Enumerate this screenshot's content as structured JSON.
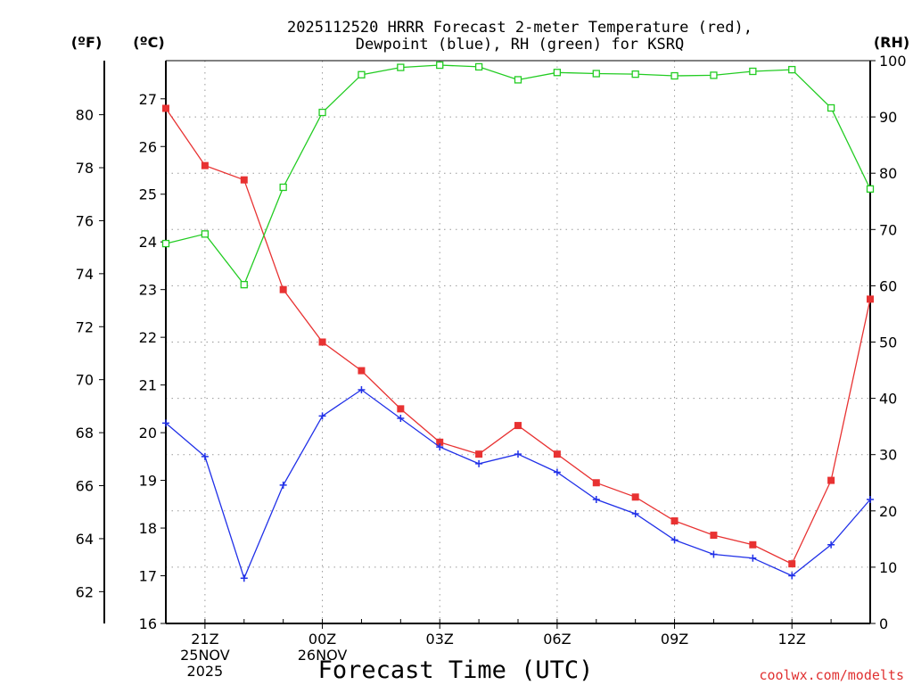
{
  "chart_data": {
    "type": "line",
    "title_line1": "2025112520 HRRR Forecast 2-meter Temperature (red),",
    "title_line2": "Dewpoint (blue), RH (green) for KSRQ",
    "xlabel": "Forecast Time (UTC)",
    "credit": "coolwx.com/modelts",
    "unit_fahrenheit": "(ºF)",
    "unit_celsius": "(ºC)",
    "unit_rh": "(RH)",
    "x_hours": [
      20,
      21,
      22,
      23,
      24,
      25,
      26,
      27,
      28,
      29,
      30,
      31,
      32,
      33,
      34,
      35,
      36,
      37,
      38
    ],
    "x_tick_hours": [
      21,
      24,
      27,
      30,
      33,
      36
    ],
    "x_tick_labels": [
      [
        "21Z",
        "25NOV",
        "2025"
      ],
      [
        "00Z",
        "26NOV"
      ],
      [
        "03Z"
      ],
      [
        "06Z"
      ],
      [
        "09Z"
      ],
      [
        "12Z"
      ]
    ],
    "celsius_range": [
      16,
      27.8
    ],
    "celsius_ticks": [
      16,
      17,
      18,
      19,
      20,
      21,
      22,
      23,
      24,
      25,
      26,
      27
    ],
    "fahrenheit_ticks": [
      62,
      64,
      66,
      68,
      70,
      72,
      74,
      76,
      78,
      80
    ],
    "rh_range": [
      0,
      100
    ],
    "rh_ticks": [
      0,
      10,
      20,
      30,
      40,
      50,
      60,
      70,
      80,
      90,
      100
    ],
    "series": [
      {
        "name": "Temperature",
        "axis": "celsius",
        "color": "#e83232",
        "marker": "filled-square",
        "values": [
          26.8,
          25.6,
          25.3,
          23.0,
          21.9,
          21.3,
          20.5,
          19.8,
          19.55,
          20.15,
          19.55,
          18.95,
          18.65,
          18.15,
          17.85,
          17.65,
          17.25,
          19.0,
          22.8
        ]
      },
      {
        "name": "Dewpoint",
        "axis": "celsius",
        "color": "#2030e8",
        "marker": "plus",
        "values": [
          20.2,
          19.5,
          16.95,
          18.9,
          20.35,
          20.9,
          20.3,
          19.7,
          19.35,
          19.55,
          19.17,
          18.6,
          18.3,
          17.75,
          17.45,
          17.37,
          17.0,
          17.65,
          18.6
        ]
      },
      {
        "name": "RH",
        "axis": "rh",
        "color": "#22cc22",
        "marker": "open-square",
        "values": [
          67.5,
          69.2,
          60.2,
          77.5,
          90.8,
          97.5,
          98.8,
          99.2,
          98.9,
          96.6,
          97.9,
          97.7,
          97.6,
          97.3,
          97.4,
          98.1,
          98.4,
          91.6,
          77.2
        ]
      }
    ]
  }
}
